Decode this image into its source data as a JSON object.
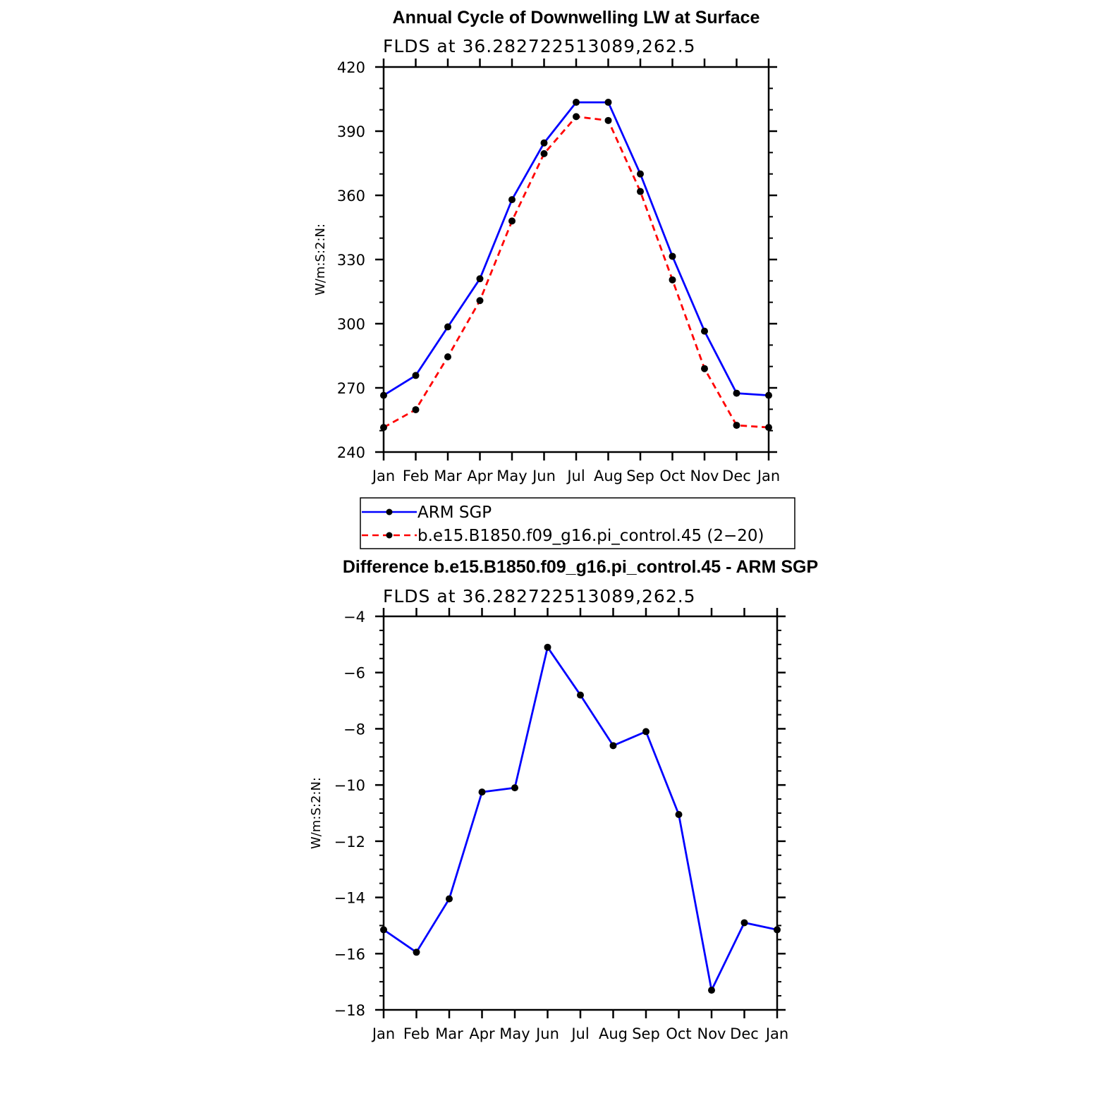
{
  "chart_data": [
    {
      "type": "line",
      "title": "Annual Cycle of Downwelling LW at Surface",
      "subtitle": "FLDS at 36.282722513089,262.5",
      "ylabel": "W/m:S:2:N:",
      "categories": [
        "Jan",
        "Feb",
        "Mar",
        "Apr",
        "May",
        "Jun",
        "Jul",
        "Aug",
        "Sep",
        "Oct",
        "Nov",
        "Dec",
        "Jan"
      ],
      "ylim": [
        240,
        420
      ],
      "yticks": [
        240,
        270,
        300,
        330,
        360,
        390,
        420
      ],
      "series": [
        {
          "name": "ARM SGP",
          "color": "#0000ff",
          "dash": "solid",
          "values": [
            266.5,
            275.8,
            298.5,
            321,
            358,
            384.5,
            403.5,
            403.5,
            370,
            331.5,
            296.5,
            267.5,
            266.5
          ]
        },
        {
          "name": "b.e15.B1850.f09_g16.pi_control.45 (2−20)",
          "color": "#ff0000",
          "dash": "dashed",
          "values": [
            251.5,
            259.8,
            284.5,
            310.8,
            348,
            379.5,
            396.8,
            395,
            361.8,
            320.5,
            279,
            252.5,
            251.5
          ]
        }
      ],
      "legend": "below"
    },
    {
      "type": "line",
      "title": "Difference b.e15.B1850.f09_g16.pi_control.45 - ARM SGP",
      "subtitle": "FLDS at 36.282722513089,262.5",
      "ylabel": "W/m:S:2:N:",
      "categories": [
        "Jan",
        "Feb",
        "Mar",
        "Apr",
        "May",
        "Jun",
        "Jul",
        "Aug",
        "Sep",
        "Oct",
        "Nov",
        "Dec",
        "Jan"
      ],
      "ylim": [
        -18,
        -4
      ],
      "yticks": [
        -18,
        -16,
        -14,
        -12,
        -10,
        -8,
        -6,
        -4
      ],
      "series": [
        {
          "color": "#0000ff",
          "dash": "solid",
          "values": [
            -15.15,
            -15.95,
            -14.05,
            -10.25,
            -10.1,
            -5.1,
            -6.8,
            -8.6,
            -8.1,
            -11.05,
            -17.3,
            -14.9,
            -15.15
          ]
        }
      ]
    }
  ]
}
